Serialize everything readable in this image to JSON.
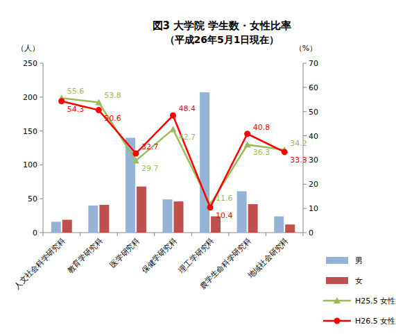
{
  "chart_data": {
    "type": "bar",
    "title": "図3 大学院 学生数・女性比率",
    "subtitle": "（平成26年5月1日現在）",
    "y_label": "（人）",
    "y2_label": "（%）",
    "categories": [
      "人文社会科学研究科",
      "教育学研究科",
      "医学研究科",
      "保健学研究科",
      "理工学研究科",
      "農学生命科学研究科",
      "地域社会研究科"
    ],
    "series": [
      {
        "name": "男",
        "type": "bar",
        "color": "#95b3d7",
        "values": [
          16,
          40,
          140,
          49,
          207,
          61,
          24
        ]
      },
      {
        "name": "女",
        "type": "bar",
        "color": "#c0504d",
        "values": [
          19,
          41,
          68,
          46,
          24,
          42,
          12
        ]
      },
      {
        "name": "H25.5 女性比率",
        "type": "line",
        "axis": "y2",
        "color": "#9bbb59",
        "marker": "triangle",
        "data_labels": true,
        "values": [
          55.6,
          53.8,
          29.7,
          42.7,
          11.6,
          36.3,
          34.2
        ]
      },
      {
        "name": "H26.5 女性比率",
        "type": "line",
        "axis": "y2",
        "color": "#ff0000",
        "marker": "circle",
        "data_labels": true,
        "values": [
          54.3,
          50.6,
          32.7,
          48.4,
          10.4,
          40.8,
          33.3
        ]
      }
    ],
    "ylim": [
      0,
      250
    ],
    "yticks": [
      0,
      50,
      100,
      150,
      200,
      250
    ],
    "y2lim": [
      0,
      70
    ],
    "y2ticks": [
      0,
      10,
      20,
      30,
      40,
      50,
      60,
      70
    ],
    "grid": false,
    "legend": "right"
  }
}
